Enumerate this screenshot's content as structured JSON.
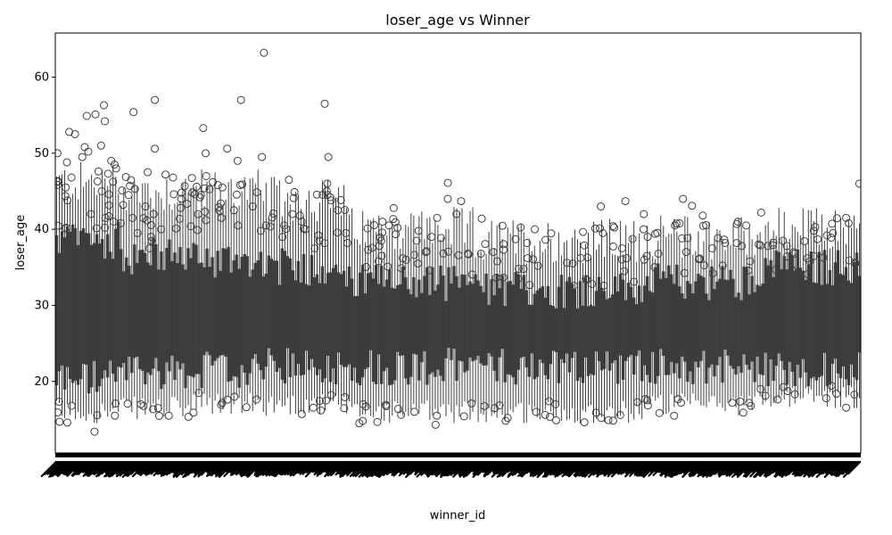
{
  "chart_data": {
    "type": "box",
    "title": "loser_age vs Winner",
    "xlabel": "winner_id",
    "ylabel": "loser_age",
    "ylim": [
      10.6,
      65.8
    ],
    "y_ticks": [
      20,
      30,
      40,
      50,
      60
    ],
    "y_tick_labels": [
      "20",
      "30",
      "40",
      "50",
      "60"
    ],
    "x_ticks_note": "hundreds of overlapping rotated winner_id tick labels (illegible)",
    "x_tick_rotation_deg": 45,
    "grid": false,
    "legend": "none",
    "colors": {
      "box_fill": "#3b3b3b",
      "box_edge": "#3f3f3f",
      "outlier_edge": "#3f3f3f",
      "axes": "#000000"
    },
    "segments": [
      {
        "from": 0.0,
        "to": 0.08,
        "q1": 20.5,
        "q3": 38.5,
        "wlo": 16.0,
        "whi": 46.0,
        "outliers": [
          13.4,
          14.7,
          15.5,
          16.8,
          45.0,
          46.3,
          47.3,
          48.0,
          48.8,
          49.5,
          50.2,
          51.0,
          52.5,
          54.2,
          55.1,
          56.3,
          54.9,
          52.8,
          50.8,
          50.0,
          49.0,
          48.5,
          47.6,
          46.8,
          44.6,
          45.5,
          43.8,
          42.0,
          41.0,
          40.2
        ]
      },
      {
        "from": 0.08,
        "to": 0.17,
        "q1": 21.5,
        "q3": 36.5,
        "wlo": 16.5,
        "whi": 45.0,
        "outliers": [
          15.5,
          16.5,
          37.5,
          38.5,
          39.0,
          40.0,
          40.8,
          41.5,
          42.0,
          43.0,
          44.5,
          45.3,
          47.5,
          50.6,
          55.4,
          57.0,
          47.2,
          45.7,
          44.0,
          43.2,
          42.8,
          40.4,
          39.5
        ]
      },
      {
        "from": 0.17,
        "to": 0.26,
        "q1": 21.5,
        "q3": 36.0,
        "wlo": 17.0,
        "whi": 45.0,
        "outliers": [
          17.2,
          18.5,
          40.5,
          41.5,
          42.5,
          43.4,
          44.2,
          45.5,
          46.2,
          49.0,
          49.5,
          50.0,
          53.3,
          57.0,
          50.6,
          63.2,
          45.8,
          44.5,
          43.0,
          42.0,
          41.2,
          39.8
        ]
      },
      {
        "from": 0.26,
        "to": 0.36,
        "q1": 22.0,
        "q3": 35.0,
        "wlo": 17.0,
        "whi": 44.0,
        "outliers": [
          16.2,
          17.5,
          37.5,
          38.5,
          39.2,
          40.0,
          41.0,
          42.0,
          42.5,
          44.5,
          45.0,
          46.0,
          46.5,
          49.5,
          56.5,
          43.8,
          41.8,
          40.5,
          39.0
        ]
      },
      {
        "from": 0.36,
        "to": 0.52,
        "q1": 22.0,
        "q3": 33.0,
        "wlo": 16.0,
        "whi": 40.0,
        "outliers": [
          14.3,
          15.5,
          16.0,
          16.4,
          35.5,
          36.2,
          37.0,
          37.8,
          38.5,
          39.0,
          39.8,
          40.2,
          41.0,
          42.0,
          42.8,
          43.7,
          44.0,
          46.1,
          41.5,
          40.5,
          39.5,
          38.2,
          37.3,
          36.5
        ]
      },
      {
        "from": 0.52,
        "to": 0.73,
        "q1": 22.0,
        "q3": 32.0,
        "wlo": 16.0,
        "whi": 38.5,
        "outliers": [
          15.2,
          15.6,
          16.0,
          16.5,
          34.5,
          35.2,
          35.8,
          36.3,
          37.0,
          37.5,
          38.2,
          38.7,
          39.5,
          40.0,
          41.4,
          43.0,
          43.7,
          36.8,
          35.5,
          34.8
        ]
      },
      {
        "from": 0.73,
        "to": 0.87,
        "q1": 22.0,
        "q3": 33.0,
        "wlo": 17.0,
        "whi": 39.0,
        "outliers": [
          15.5,
          16.8,
          17.2,
          36.0,
          36.8,
          37.5,
          38.2,
          38.8,
          39.4,
          40.0,
          40.5,
          41.0,
          41.8,
          42.0,
          43.1,
          44.0,
          39.0,
          37.8,
          36.5
        ]
      },
      {
        "from": 0.87,
        "to": 1.0,
        "q1": 21.5,
        "q3": 35.0,
        "wlo": 18.0,
        "whi": 40.0,
        "outliers": [
          17.8,
          18.3,
          19.0,
          35.5,
          36.2,
          37.0,
          37.8,
          38.5,
          39.2,
          39.8,
          40.3,
          40.8,
          41.5,
          42.2,
          46.0,
          39.5,
          38.0,
          36.8
        ]
      }
    ]
  }
}
